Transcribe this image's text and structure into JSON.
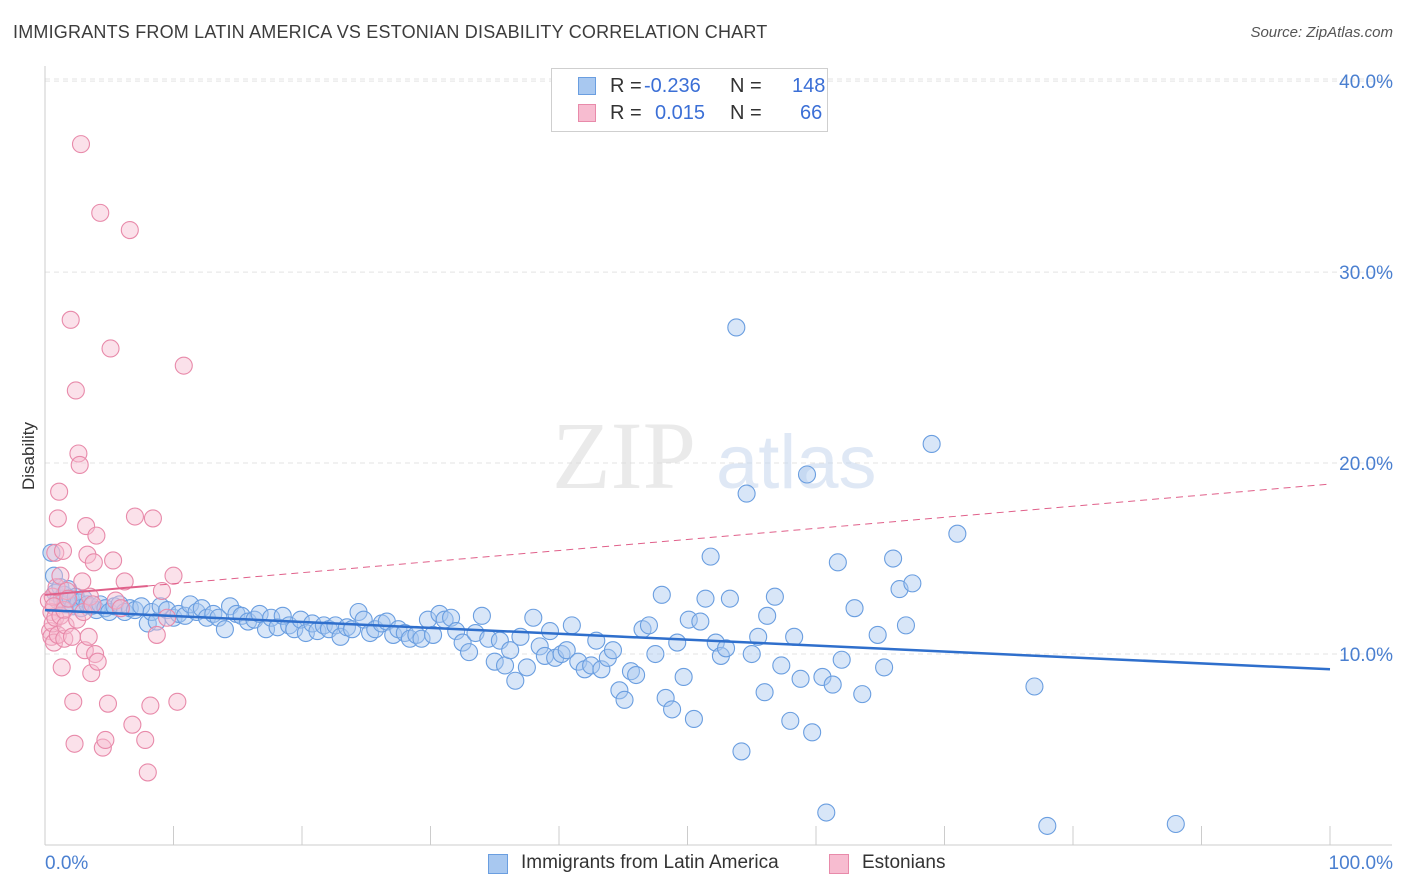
{
  "title": "IMMIGRANTS FROM LATIN AMERICA VS ESTONIAN DISABILITY CORRELATION CHART",
  "source": "Source: ZipAtlas.com",
  "watermark": {
    "zip": "ZIP",
    "atlas": "atlas"
  },
  "legend_top": {
    "rows": [
      {
        "r_label": "R =",
        "r_value": "-0.236",
        "n_label": "N =",
        "n_value": "148",
        "color": "#a8c8f0",
        "border": "#6a9ee0"
      },
      {
        "r_label": "R =",
        "r_value": "0.015",
        "n_label": "N =",
        "n_value": "66",
        "color": "#f7bcd0",
        "border": "#e88aaa"
      }
    ]
  },
  "legend_bottom": [
    {
      "label": "Immigrants from Latin America",
      "color": "#a8c8f0",
      "border": "#6a9ee0"
    },
    {
      "label": "Estonians",
      "color": "#f7bcd0",
      "border": "#e88aaa"
    }
  ],
  "chart_data": {
    "type": "scatter",
    "title": "IMMIGRANTS FROM LATIN AMERICA VS ESTONIAN DISABILITY CORRELATION CHART",
    "xlabel": "",
    "ylabel": "Disability",
    "xlim": [
      0,
      100
    ],
    "ylim": [
      0,
      41
    ],
    "x_tick_labels": [
      "0.0%",
      "100.0%"
    ],
    "y_ticks": [
      10,
      20,
      30,
      40
    ],
    "y_tick_labels": [
      "10.0%",
      "20.0%",
      "30.0%",
      "40.0%"
    ],
    "grid": true,
    "series": [
      {
        "name": "Immigrants from Latin America",
        "color": "#a8c8f0",
        "edge": "#6a9ee0",
        "trend": {
          "x": [
            0,
            100
          ],
          "y": [
            12.3,
            9.2
          ],
          "color": "#2f6fcc",
          "style": "solid"
        },
        "points": [
          [
            0.5,
            15.3
          ],
          [
            0.7,
            14.1
          ],
          [
            0.8,
            13.2
          ],
          [
            1.0,
            12.8
          ],
          [
            1.2,
            13.5
          ],
          [
            1.3,
            12.9
          ],
          [
            1.5,
            13.1
          ],
          [
            1.6,
            12.6
          ],
          [
            1.8,
            13.4
          ],
          [
            2.0,
            12.9
          ],
          [
            2.2,
            12.5
          ],
          [
            2.4,
            13.0
          ],
          [
            2.6,
            12.7
          ],
          [
            2.8,
            12.4
          ],
          [
            3.0,
            12.9
          ],
          [
            3.3,
            12.6
          ],
          [
            3.6,
            12.5
          ],
          [
            4.0,
            12.3
          ],
          [
            4.3,
            12.6
          ],
          [
            4.7,
            12.4
          ],
          [
            5.0,
            12.2
          ],
          [
            5.4,
            12.5
          ],
          [
            5.8,
            12.6
          ],
          [
            6.2,
            12.2
          ],
          [
            6.6,
            12.4
          ],
          [
            7.0,
            12.3
          ],
          [
            7.5,
            12.5
          ],
          [
            8.0,
            11.6
          ],
          [
            8.3,
            12.2
          ],
          [
            8.7,
            11.7
          ],
          [
            9.0,
            12.5
          ],
          [
            9.5,
            12.3
          ],
          [
            10.0,
            11.9
          ],
          [
            10.4,
            12.1
          ],
          [
            10.9,
            12.0
          ],
          [
            11.3,
            12.6
          ],
          [
            11.8,
            12.2
          ],
          [
            12.2,
            12.4
          ],
          [
            12.6,
            11.9
          ],
          [
            13.1,
            12.1
          ],
          [
            13.5,
            11.9
          ],
          [
            14.0,
            11.3
          ],
          [
            14.4,
            12.5
          ],
          [
            14.9,
            12.1
          ],
          [
            15.3,
            12.0
          ],
          [
            15.8,
            11.7
          ],
          [
            16.3,
            11.8
          ],
          [
            16.7,
            12.1
          ],
          [
            17.2,
            11.3
          ],
          [
            17.6,
            11.9
          ],
          [
            18.1,
            11.4
          ],
          [
            18.5,
            12.0
          ],
          [
            19.0,
            11.5
          ],
          [
            19.4,
            11.3
          ],
          [
            19.9,
            11.8
          ],
          [
            20.3,
            11.1
          ],
          [
            20.8,
            11.6
          ],
          [
            21.2,
            11.2
          ],
          [
            21.7,
            11.5
          ],
          [
            22.1,
            11.3
          ],
          [
            22.6,
            11.5
          ],
          [
            23.0,
            10.9
          ],
          [
            23.5,
            11.4
          ],
          [
            23.9,
            11.3
          ],
          [
            24.4,
            12.2
          ],
          [
            24.8,
            11.8
          ],
          [
            25.3,
            11.1
          ],
          [
            25.7,
            11.3
          ],
          [
            26.2,
            11.6
          ],
          [
            26.6,
            11.7
          ],
          [
            27.1,
            11.0
          ],
          [
            27.5,
            11.3
          ],
          [
            28.0,
            11.1
          ],
          [
            28.4,
            10.8
          ],
          [
            28.9,
            11.0
          ],
          [
            29.3,
            10.8
          ],
          [
            29.8,
            11.8
          ],
          [
            30.2,
            11.0
          ],
          [
            30.7,
            12.1
          ],
          [
            31.1,
            11.8
          ],
          [
            31.6,
            11.9
          ],
          [
            32.0,
            11.2
          ],
          [
            32.5,
            10.6
          ],
          [
            33.0,
            10.1
          ],
          [
            33.5,
            11.1
          ],
          [
            34.0,
            12.0
          ],
          [
            34.5,
            10.8
          ],
          [
            35.0,
            9.6
          ],
          [
            35.4,
            10.7
          ],
          [
            35.8,
            9.4
          ],
          [
            36.2,
            10.2
          ],
          [
            36.6,
            8.6
          ],
          [
            37.0,
            10.9
          ],
          [
            37.5,
            9.3
          ],
          [
            38.0,
            11.9
          ],
          [
            38.5,
            10.4
          ],
          [
            38.9,
            9.9
          ],
          [
            39.3,
            11.2
          ],
          [
            39.7,
            9.8
          ],
          [
            40.2,
            10.0
          ],
          [
            40.6,
            10.2
          ],
          [
            41.0,
            11.5
          ],
          [
            41.5,
            9.6
          ],
          [
            42.0,
            9.2
          ],
          [
            42.5,
            9.4
          ],
          [
            42.9,
            10.7
          ],
          [
            43.3,
            9.2
          ],
          [
            43.8,
            9.8
          ],
          [
            44.2,
            10.2
          ],
          [
            44.7,
            8.1
          ],
          [
            45.1,
            7.6
          ],
          [
            45.6,
            9.1
          ],
          [
            46.0,
            8.9
          ],
          [
            46.5,
            11.3
          ],
          [
            47.0,
            11.5
          ],
          [
            47.5,
            10.0
          ],
          [
            48.0,
            13.1
          ],
          [
            48.3,
            7.7
          ],
          [
            48.8,
            7.1
          ],
          [
            49.2,
            10.6
          ],
          [
            49.7,
            8.8
          ],
          [
            50.1,
            11.8
          ],
          [
            50.5,
            6.6
          ],
          [
            51.0,
            11.7
          ],
          [
            51.4,
            12.9
          ],
          [
            51.8,
            15.1
          ],
          [
            52.2,
            10.6
          ],
          [
            52.6,
            9.9
          ],
          [
            53.0,
            10.3
          ],
          [
            53.3,
            12.9
          ],
          [
            53.8,
            27.1
          ],
          [
            54.2,
            4.9
          ],
          [
            54.6,
            18.4
          ],
          [
            55.0,
            10.0
          ],
          [
            55.5,
            10.9
          ],
          [
            56.0,
            8.0
          ],
          [
            56.2,
            12.0
          ],
          [
            56.8,
            13.0
          ],
          [
            57.3,
            9.4
          ],
          [
            58.0,
            6.5
          ],
          [
            58.3,
            10.9
          ],
          [
            58.8,
            8.7
          ],
          [
            59.3,
            19.4
          ],
          [
            59.7,
            5.9
          ],
          [
            60.5,
            8.8
          ],
          [
            60.8,
            1.7
          ],
          [
            61.3,
            8.4
          ],
          [
            61.7,
            14.8
          ],
          [
            62.0,
            9.7
          ],
          [
            63.0,
            12.4
          ],
          [
            63.6,
            7.9
          ],
          [
            64.8,
            11.0
          ],
          [
            65.3,
            9.3
          ],
          [
            66.0,
            15.0
          ],
          [
            66.5,
            13.4
          ],
          [
            67.0,
            11.5
          ],
          [
            67.5,
            13.7
          ],
          [
            69.0,
            21.0
          ],
          [
            71.0,
            16.3
          ],
          [
            77.0,
            8.3
          ],
          [
            78.0,
            1.0
          ],
          [
            88.0,
            1.1
          ]
        ]
      },
      {
        "name": "Estonians",
        "color": "#f7bcd0",
        "edge": "#e88aaa",
        "trend": {
          "x": [
            0,
            100
          ],
          "y": [
            13.1,
            18.9
          ],
          "color": "#e0608a",
          "style": "dashed",
          "solid_to_x": 8
        },
        "points": [
          [
            0.3,
            12.8
          ],
          [
            0.4,
            11.2
          ],
          [
            0.5,
            10.9
          ],
          [
            0.5,
            12.2
          ],
          [
            0.6,
            11.6
          ],
          [
            0.6,
            13.0
          ],
          [
            0.7,
            10.6
          ],
          [
            0.7,
            12.5
          ],
          [
            0.8,
            11.9
          ],
          [
            0.8,
            15.3
          ],
          [
            0.9,
            13.5
          ],
          [
            1.0,
            11.0
          ],
          [
            1.0,
            17.1
          ],
          [
            1.1,
            18.5
          ],
          [
            1.2,
            14.1
          ],
          [
            1.2,
            12.0
          ],
          [
            1.3,
            9.3
          ],
          [
            1.4,
            15.4
          ],
          [
            1.5,
            12.3
          ],
          [
            1.5,
            10.8
          ],
          [
            1.6,
            11.5
          ],
          [
            1.7,
            13.3
          ],
          [
            1.8,
            12.9
          ],
          [
            2.0,
            27.5
          ],
          [
            2.1,
            10.9
          ],
          [
            2.2,
            7.5
          ],
          [
            2.3,
            5.3
          ],
          [
            2.4,
            23.8
          ],
          [
            2.5,
            11.8
          ],
          [
            2.6,
            20.5
          ],
          [
            2.7,
            19.9
          ],
          [
            2.8,
            36.7
          ],
          [
            2.9,
            13.8
          ],
          [
            3.0,
            12.2
          ],
          [
            3.1,
            10.2
          ],
          [
            3.2,
            16.7
          ],
          [
            3.3,
            15.2
          ],
          [
            3.4,
            10.9
          ],
          [
            3.5,
            13.0
          ],
          [
            3.6,
            9.0
          ],
          [
            3.7,
            12.6
          ],
          [
            3.8,
            14.8
          ],
          [
            3.9,
            10.0
          ],
          [
            4.0,
            16.2
          ],
          [
            4.1,
            9.6
          ],
          [
            4.3,
            33.1
          ],
          [
            4.5,
            5.1
          ],
          [
            4.7,
            5.5
          ],
          [
            4.9,
            7.4
          ],
          [
            5.1,
            26.0
          ],
          [
            5.3,
            14.9
          ],
          [
            5.5,
            12.8
          ],
          [
            5.9,
            12.4
          ],
          [
            6.2,
            13.8
          ],
          [
            6.6,
            32.2
          ],
          [
            6.8,
            6.3
          ],
          [
            7.0,
            17.2
          ],
          [
            7.8,
            5.5
          ],
          [
            8.0,
            3.8
          ],
          [
            8.2,
            7.3
          ],
          [
            8.4,
            17.1
          ],
          [
            8.7,
            11.0
          ],
          [
            9.1,
            13.3
          ],
          [
            9.5,
            11.9
          ],
          [
            10.0,
            14.1
          ],
          [
            10.3,
            7.5
          ],
          [
            10.8,
            25.1
          ]
        ]
      }
    ]
  }
}
